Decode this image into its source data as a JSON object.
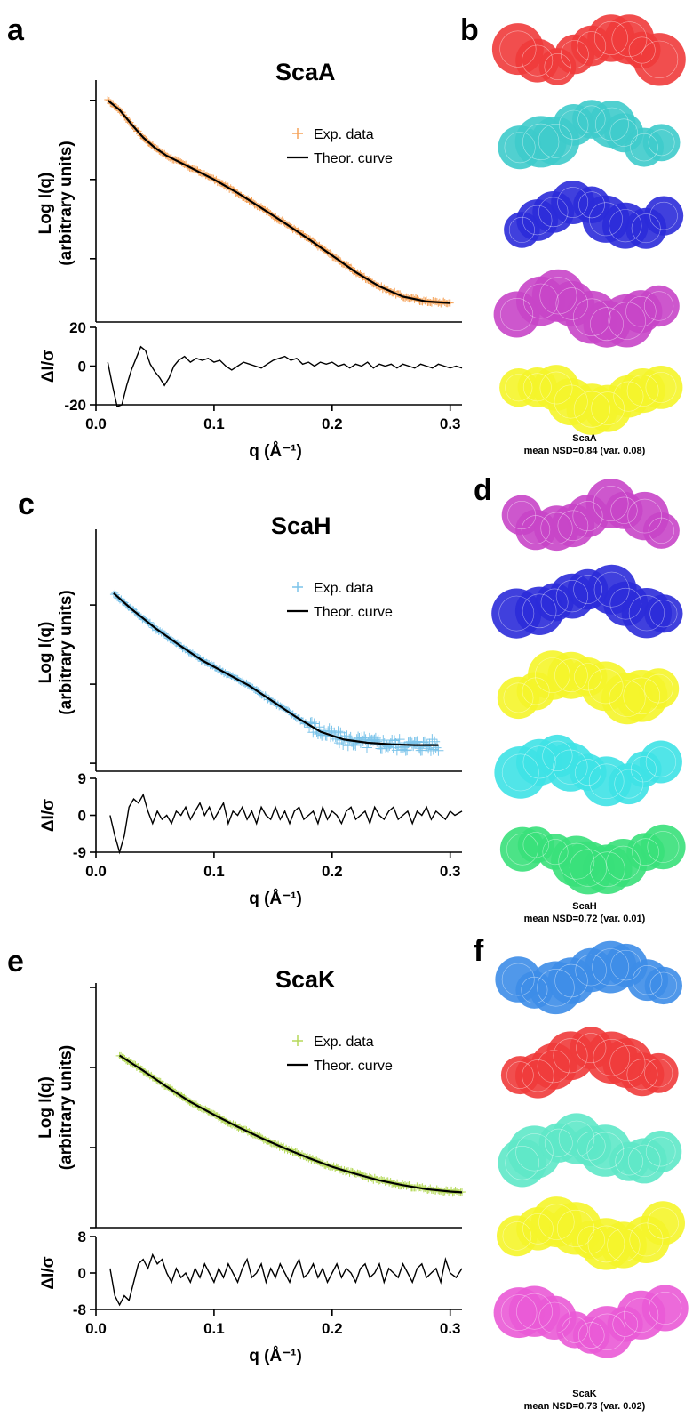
{
  "colors": {
    "axis": "#000000",
    "theor_curve": "#000000"
  },
  "chart_data": [
    {
      "panel": "a",
      "type": "line",
      "title": "ScaA",
      "ylabel_line1": "Log I(q)",
      "ylabel_line2": "(arbitrary units)",
      "xlabel": "q (Å⁻¹)",
      "xlim": [
        0.0,
        0.31
      ],
      "x_ticks": [
        "0.0",
        "0.1",
        "0.2",
        "0.3"
      ],
      "y_ticks_log": [
        3,
        2,
        1,
        0
      ],
      "data_color": "#f5a35a",
      "legend": [
        "Exp. data",
        "Theor. curve"
      ],
      "series": [
        {
          "name": "Exp. data",
          "x": [
            0.01,
            0.02,
            0.03,
            0.04,
            0.05,
            0.06,
            0.08,
            0.1,
            0.12,
            0.14,
            0.16,
            0.18,
            0.2,
            0.22,
            0.24,
            0.26,
            0.28,
            0.3
          ],
          "y": [
            3.0,
            2.88,
            2.7,
            2.53,
            2.4,
            2.3,
            2.15,
            2.0,
            1.83,
            1.64,
            1.45,
            1.25,
            1.04,
            0.83,
            0.65,
            0.52,
            0.46,
            0.44
          ]
        },
        {
          "name": "Theor. curve",
          "x": [
            0.01,
            0.02,
            0.03,
            0.04,
            0.05,
            0.06,
            0.08,
            0.1,
            0.12,
            0.14,
            0.16,
            0.18,
            0.2,
            0.22,
            0.24,
            0.26,
            0.28,
            0.3
          ],
          "y": [
            3.0,
            2.88,
            2.7,
            2.53,
            2.4,
            2.3,
            2.15,
            2.0,
            1.83,
            1.64,
            1.45,
            1.25,
            1.04,
            0.83,
            0.65,
            0.52,
            0.46,
            0.44
          ]
        }
      ],
      "residual": {
        "ylabel": "ΔI/σ",
        "y_ticks": [
          "20",
          "0",
          "-20"
        ],
        "ylim": [
          -20,
          20
        ],
        "points": [
          [
            0.01,
            2
          ],
          [
            0.014,
            -10
          ],
          [
            0.018,
            -22
          ],
          [
            0.022,
            -20
          ],
          [
            0.026,
            -10
          ],
          [
            0.03,
            -2
          ],
          [
            0.034,
            4
          ],
          [
            0.038,
            10
          ],
          [
            0.042,
            8
          ],
          [
            0.046,
            1
          ],
          [
            0.05,
            -3
          ],
          [
            0.054,
            -6
          ],
          [
            0.058,
            -10
          ],
          [
            0.062,
            -6
          ],
          [
            0.066,
            0
          ],
          [
            0.07,
            3
          ],
          [
            0.075,
            5
          ],
          [
            0.08,
            2
          ],
          [
            0.085,
            4
          ],
          [
            0.09,
            3
          ],
          [
            0.095,
            4
          ],
          [
            0.1,
            2
          ],
          [
            0.105,
            3
          ],
          [
            0.11,
            0
          ],
          [
            0.115,
            -2
          ],
          [
            0.12,
            0
          ],
          [
            0.125,
            2
          ],
          [
            0.13,
            1
          ],
          [
            0.135,
            0
          ],
          [
            0.14,
            -1
          ],
          [
            0.145,
            1
          ],
          [
            0.15,
            3
          ],
          [
            0.155,
            4
          ],
          [
            0.16,
            5
          ],
          [
            0.165,
            3
          ],
          [
            0.17,
            4
          ],
          [
            0.175,
            1
          ],
          [
            0.18,
            2
          ],
          [
            0.185,
            0
          ],
          [
            0.19,
            2
          ],
          [
            0.195,
            1
          ],
          [
            0.2,
            2
          ],
          [
            0.205,
            0
          ],
          [
            0.21,
            1
          ],
          [
            0.215,
            -1
          ],
          [
            0.22,
            1
          ],
          [
            0.225,
            0
          ],
          [
            0.23,
            2
          ],
          [
            0.235,
            -1
          ],
          [
            0.24,
            1
          ],
          [
            0.245,
            0
          ],
          [
            0.25,
            1
          ],
          [
            0.255,
            -1
          ],
          [
            0.26,
            1
          ],
          [
            0.265,
            0
          ],
          [
            0.27,
            -1
          ],
          [
            0.275,
            1
          ],
          [
            0.28,
            0
          ],
          [
            0.285,
            -1
          ],
          [
            0.29,
            1
          ],
          [
            0.295,
            0
          ],
          [
            0.3,
            -1
          ],
          [
            0.305,
            0
          ],
          [
            0.31,
            -1
          ]
        ]
      },
      "models": {
        "caption_line1": "ScaA",
        "caption_line2": "mean NSD=0.84 (var. 0.08)",
        "colors": [
          "#ef3b3b",
          "#3ecbcb",
          "#2b2bd9",
          "#c845c8",
          "#f5f52a"
        ]
      }
    },
    {
      "panel": "c",
      "type": "line",
      "title": "ScaH",
      "ylabel_line1": "Log I(q)",
      "ylabel_line2": "(arbitrary units)",
      "xlabel": "q (Å⁻¹)",
      "xlim": [
        0.0,
        0.31
      ],
      "x_ticks": [
        "0.0",
        "0.1",
        "0.2",
        "0.3"
      ],
      "y_ticks_log": [
        3,
        2,
        1,
        0
      ],
      "data_color": "#7cc4ea",
      "legend": [
        "Exp. data",
        "Theor. curve"
      ],
      "series": [
        {
          "name": "Exp. data",
          "x": [
            0.015,
            0.03,
            0.05,
            0.07,
            0.09,
            0.11,
            0.13,
            0.15,
            0.17,
            0.19,
            0.21,
            0.23,
            0.25,
            0.27,
            0.29
          ],
          "y": [
            2.15,
            1.95,
            1.71,
            1.5,
            1.3,
            1.14,
            0.98,
            0.78,
            0.58,
            0.4,
            0.3,
            0.26,
            0.24,
            0.23,
            0.23
          ]
        },
        {
          "name": "Theor. curve",
          "x": [
            0.015,
            0.03,
            0.05,
            0.07,
            0.09,
            0.11,
            0.13,
            0.15,
            0.17,
            0.19,
            0.21,
            0.23,
            0.25,
            0.27,
            0.29
          ],
          "y": [
            2.15,
            1.95,
            1.71,
            1.5,
            1.3,
            1.14,
            0.98,
            0.78,
            0.58,
            0.4,
            0.3,
            0.26,
            0.24,
            0.23,
            0.23
          ]
        }
      ],
      "residual": {
        "ylabel": "ΔI/σ",
        "y_ticks": [
          "9",
          "0",
          "-9"
        ],
        "ylim": [
          -9,
          9
        ],
        "points": [
          [
            0.012,
            0
          ],
          [
            0.016,
            -5
          ],
          [
            0.02,
            -9
          ],
          [
            0.024,
            -5
          ],
          [
            0.028,
            2
          ],
          [
            0.032,
            4
          ],
          [
            0.036,
            3
          ],
          [
            0.04,
            5
          ],
          [
            0.044,
            1
          ],
          [
            0.048,
            -2
          ],
          [
            0.052,
            1
          ],
          [
            0.056,
            -1
          ],
          [
            0.06,
            0
          ],
          [
            0.064,
            -2
          ],
          [
            0.068,
            1
          ],
          [
            0.072,
            0
          ],
          [
            0.076,
            2
          ],
          [
            0.08,
            -1
          ],
          [
            0.084,
            1
          ],
          [
            0.088,
            3
          ],
          [
            0.092,
            0
          ],
          [
            0.096,
            2
          ],
          [
            0.1,
            -1
          ],
          [
            0.104,
            1
          ],
          [
            0.108,
            3
          ],
          [
            0.112,
            -2
          ],
          [
            0.116,
            1
          ],
          [
            0.12,
            0
          ],
          [
            0.124,
            2
          ],
          [
            0.128,
            -1
          ],
          [
            0.132,
            1
          ],
          [
            0.136,
            -2
          ],
          [
            0.14,
            2
          ],
          [
            0.144,
            0
          ],
          [
            0.148,
            -1
          ],
          [
            0.152,
            2
          ],
          [
            0.156,
            -1
          ],
          [
            0.16,
            1
          ],
          [
            0.164,
            -2
          ],
          [
            0.168,
            1
          ],
          [
            0.172,
            2
          ],
          [
            0.176,
            -1
          ],
          [
            0.18,
            0
          ],
          [
            0.184,
            1
          ],
          [
            0.188,
            -2
          ],
          [
            0.192,
            2
          ],
          [
            0.196,
            -1
          ],
          [
            0.2,
            1
          ],
          [
            0.204,
            0
          ],
          [
            0.208,
            -2
          ],
          [
            0.212,
            1
          ],
          [
            0.216,
            2
          ],
          [
            0.22,
            -1
          ],
          [
            0.224,
            0
          ],
          [
            0.228,
            1
          ],
          [
            0.232,
            -2
          ],
          [
            0.236,
            2
          ],
          [
            0.24,
            0
          ],
          [
            0.244,
            -1
          ],
          [
            0.248,
            1
          ],
          [
            0.252,
            2
          ],
          [
            0.256,
            -1
          ],
          [
            0.26,
            0
          ],
          [
            0.264,
            1
          ],
          [
            0.268,
            -2
          ],
          [
            0.272,
            1
          ],
          [
            0.276,
            0
          ],
          [
            0.28,
            2
          ],
          [
            0.284,
            -1
          ],
          [
            0.288,
            1
          ],
          [
            0.292,
            0
          ],
          [
            0.296,
            -1
          ],
          [
            0.3,
            1
          ],
          [
            0.304,
            0
          ],
          [
            0.31,
            1
          ]
        ]
      },
      "models": {
        "caption_line1": "ScaH",
        "caption_line2": "mean NSD=0.72 (var. 0.01)",
        "colors": [
          "#c845c8",
          "#2b2bd9",
          "#f5f52a",
          "#3ee2e6",
          "#39e07a"
        ]
      }
    },
    {
      "panel": "e",
      "type": "line",
      "title": "ScaK",
      "ylabel_line1": "Log I(q)",
      "ylabel_line2": "(arbitrary units)",
      "xlabel": "q (Å⁻¹)",
      "xlim": [
        0.0,
        0.31
      ],
      "x_ticks": [
        "0.0",
        "0.1",
        "0.2",
        "0.3"
      ],
      "y_ticks_log": [
        3,
        2,
        1,
        0
      ],
      "data_color": "#b5d95a",
      "legend": [
        "Exp. data",
        "Theor. curve"
      ],
      "series": [
        {
          "name": "Exp. data",
          "x": [
            0.02,
            0.04,
            0.06,
            0.08,
            0.1,
            0.12,
            0.14,
            0.16,
            0.18,
            0.2,
            0.22,
            0.24,
            0.26,
            0.28,
            0.3,
            0.31
          ],
          "y": [
            2.15,
            1.96,
            1.76,
            1.57,
            1.41,
            1.26,
            1.12,
            0.99,
            0.87,
            0.76,
            0.67,
            0.59,
            0.53,
            0.48,
            0.45,
            0.44
          ]
        },
        {
          "name": "Theor. curve",
          "x": [
            0.02,
            0.04,
            0.06,
            0.08,
            0.1,
            0.12,
            0.14,
            0.16,
            0.18,
            0.2,
            0.22,
            0.24,
            0.26,
            0.28,
            0.3,
            0.31
          ],
          "y": [
            2.15,
            1.96,
            1.76,
            1.57,
            1.41,
            1.26,
            1.12,
            0.99,
            0.87,
            0.76,
            0.67,
            0.59,
            0.53,
            0.48,
            0.45,
            0.44
          ]
        }
      ],
      "residual": {
        "ylabel": "ΔI/σ",
        "y_ticks": [
          "8",
          "0",
          "-8"
        ],
        "ylim": [
          -8,
          8
        ],
        "points": [
          [
            0.012,
            1
          ],
          [
            0.016,
            -5
          ],
          [
            0.02,
            -7
          ],
          [
            0.024,
            -5
          ],
          [
            0.028,
            -6
          ],
          [
            0.032,
            -2
          ],
          [
            0.036,
            2
          ],
          [
            0.04,
            3
          ],
          [
            0.044,
            1
          ],
          [
            0.048,
            4
          ],
          [
            0.052,
            2
          ],
          [
            0.056,
            3
          ],
          [
            0.06,
            0
          ],
          [
            0.064,
            -2
          ],
          [
            0.068,
            1
          ],
          [
            0.072,
            -1
          ],
          [
            0.076,
            0
          ],
          [
            0.08,
            -2
          ],
          [
            0.084,
            1
          ],
          [
            0.088,
            -1
          ],
          [
            0.092,
            2
          ],
          [
            0.096,
            0
          ],
          [
            0.1,
            -2
          ],
          [
            0.104,
            1
          ],
          [
            0.108,
            -1
          ],
          [
            0.112,
            2
          ],
          [
            0.116,
            0
          ],
          [
            0.12,
            -2
          ],
          [
            0.124,
            1
          ],
          [
            0.128,
            3
          ],
          [
            0.132,
            -1
          ],
          [
            0.136,
            0
          ],
          [
            0.14,
            2
          ],
          [
            0.144,
            -2
          ],
          [
            0.148,
            1
          ],
          [
            0.152,
            -1
          ],
          [
            0.156,
            2
          ],
          [
            0.16,
            0
          ],
          [
            0.164,
            -2
          ],
          [
            0.168,
            1
          ],
          [
            0.172,
            3
          ],
          [
            0.176,
            -1
          ],
          [
            0.18,
            0
          ],
          [
            0.184,
            2
          ],
          [
            0.188,
            -1
          ],
          [
            0.192,
            1
          ],
          [
            0.196,
            -2
          ],
          [
            0.2,
            0
          ],
          [
            0.204,
            2
          ],
          [
            0.208,
            -1
          ],
          [
            0.212,
            1
          ],
          [
            0.216,
            0
          ],
          [
            0.22,
            -2
          ],
          [
            0.224,
            1
          ],
          [
            0.228,
            2
          ],
          [
            0.232,
            -1
          ],
          [
            0.236,
            0
          ],
          [
            0.24,
            2
          ],
          [
            0.244,
            -2
          ],
          [
            0.248,
            1
          ],
          [
            0.252,
            0
          ],
          [
            0.256,
            -1
          ],
          [
            0.26,
            2
          ],
          [
            0.264,
            0
          ],
          [
            0.268,
            -2
          ],
          [
            0.272,
            1
          ],
          [
            0.276,
            2
          ],
          [
            0.28,
            -1
          ],
          [
            0.284,
            0
          ],
          [
            0.288,
            1
          ],
          [
            0.292,
            -2
          ],
          [
            0.296,
            3
          ],
          [
            0.3,
            0
          ],
          [
            0.305,
            -1
          ],
          [
            0.31,
            1
          ]
        ]
      },
      "models": {
        "caption_line1": "ScaK",
        "caption_line2": "mean NSD=0.73 (var. 0.02)",
        "colors": [
          "#3d8de8",
          "#ef3b3b",
          "#5ee8c8",
          "#f5f52a",
          "#ea5ad6"
        ]
      }
    }
  ]
}
